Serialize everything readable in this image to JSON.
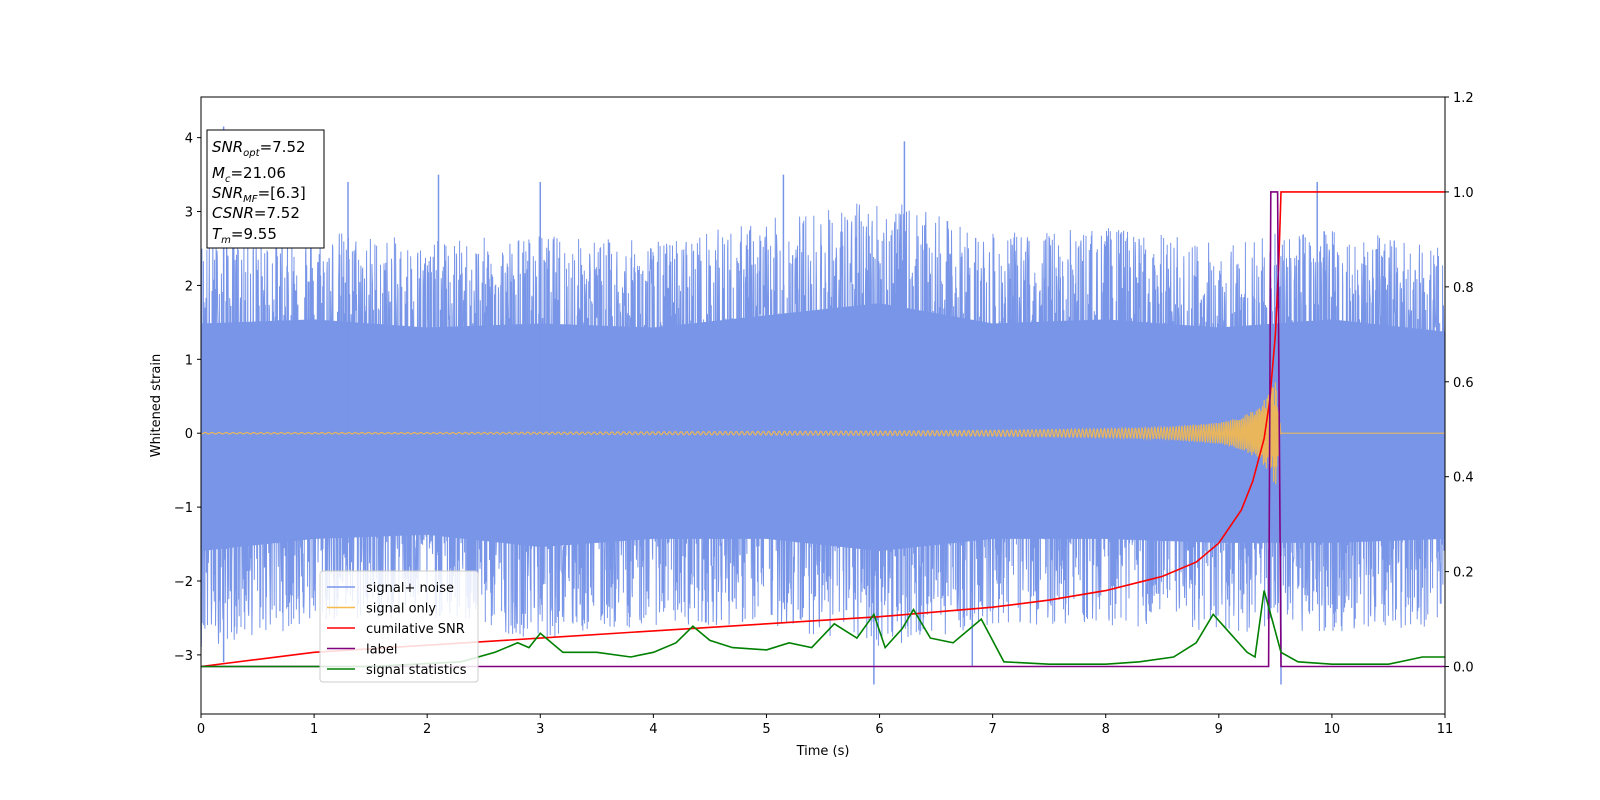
{
  "chart_data": {
    "type": "line",
    "title": "",
    "xlabel": "Time (s)",
    "ylabel": "Whitened strain",
    "y2label": "",
    "xlim": [
      0,
      11
    ],
    "ylim": [
      -3.8,
      4.55
    ],
    "y2lim": [
      -0.1,
      1.2
    ],
    "x_ticks": [
      "0",
      "1",
      "2",
      "3",
      "4",
      "5",
      "6",
      "7",
      "8",
      "9",
      "10",
      "11"
    ],
    "y_ticks": [
      "−3",
      "−2",
      "−1",
      "0",
      "1",
      "2",
      "3",
      "4"
    ],
    "y2_ticks": [
      "0.0",
      "0.2",
      "0.4",
      "0.6",
      "0.8",
      "1.0",
      "1.2"
    ],
    "grid": false,
    "legend_position": "lower-left",
    "annotation": {
      "snr_opt": "=7.52",
      "mc": "=21.06",
      "snr_mf": "=[6.3]",
      "csnr": "=7.52",
      "tm": "=9.55"
    },
    "series": [
      {
        "name": "signal+ noise",
        "color": "#7895e8",
        "axis": "left",
        "description": "whitened strain noise band",
        "envelope_x": [
          0,
          1,
          2,
          3,
          4,
          5,
          6,
          7,
          8,
          9,
          10,
          11
        ],
        "envelope_upper": [
          2.7,
          2.8,
          2.6,
          2.7,
          2.6,
          2.9,
          3.2,
          2.7,
          2.8,
          2.6,
          2.8,
          2.5
        ],
        "envelope_lower": [
          -2.9,
          -2.6,
          -2.5,
          -2.8,
          -2.6,
          -2.6,
          -2.9,
          -2.6,
          -2.6,
          -2.7,
          -2.7,
          -2.6
        ],
        "spikes": [
          [
            0.2,
            4.15
          ],
          [
            0.2,
            -3.1
          ],
          [
            1.3,
            3.4
          ],
          [
            2.1,
            3.5
          ],
          [
            3.0,
            3.4
          ],
          [
            5.15,
            3.5
          ],
          [
            5.95,
            -3.4
          ],
          [
            6.22,
            3.95
          ],
          [
            6.82,
            -3.15
          ],
          [
            9.55,
            -3.4
          ],
          [
            9.87,
            3.4
          ]
        ]
      },
      {
        "name": "signal only",
        "color": "#f5b94d",
        "axis": "left",
        "x": [
          0,
          2,
          4,
          6,
          7,
          8,
          8.5,
          9.0,
          9.2,
          9.35,
          9.45,
          9.5,
          9.55,
          11
        ],
        "values": [
          0.01,
          0.01,
          0.02,
          0.03,
          0.04,
          0.06,
          0.08,
          0.14,
          0.22,
          0.35,
          0.55,
          0.75,
          0,
          0
        ]
      },
      {
        "name": "cumilative SNR",
        "color": "#ff0000",
        "axis": "right",
        "x": [
          0,
          0.5,
          1,
          2,
          3,
          4,
          5,
          6,
          7,
          7.5,
          8,
          8.5,
          8.8,
          9.0,
          9.2,
          9.3,
          9.4,
          9.45,
          9.5,
          9.53,
          9.55,
          11
        ],
        "values": [
          0.0,
          0.015,
          0.03,
          0.045,
          0.06,
          0.075,
          0.09,
          0.105,
          0.125,
          0.14,
          0.16,
          0.19,
          0.22,
          0.26,
          0.33,
          0.39,
          0.48,
          0.56,
          0.7,
          0.85,
          1.0,
          1.0
        ]
      },
      {
        "name": "label",
        "color": "#800080",
        "axis": "right",
        "x": [
          0,
          9.44,
          9.46,
          9.52,
          9.55,
          11
        ],
        "values": [
          0.0,
          0.0,
          1.0,
          1.0,
          0.0,
          0.0
        ]
      },
      {
        "name": "signal statistics",
        "color": "#008000",
        "axis": "right",
        "x": [
          0,
          1.5,
          2.3,
          2.6,
          2.8,
          2.9,
          3.0,
          3.2,
          3.5,
          3.8,
          4.0,
          4.2,
          4.35,
          4.5,
          4.7,
          5.0,
          5.2,
          5.4,
          5.6,
          5.8,
          5.95,
          6.05,
          6.2,
          6.3,
          6.45,
          6.65,
          6.9,
          7.1,
          7.5,
          8.0,
          8.3,
          8.6,
          8.8,
          8.95,
          9.1,
          9.25,
          9.32,
          9.4,
          9.47,
          9.55,
          9.7,
          10.0,
          10.5,
          10.8,
          11.0
        ],
        "values": [
          0.0,
          0.0,
          0.01,
          0.03,
          0.05,
          0.04,
          0.07,
          0.03,
          0.03,
          0.02,
          0.03,
          0.05,
          0.085,
          0.055,
          0.04,
          0.035,
          0.05,
          0.04,
          0.09,
          0.06,
          0.11,
          0.04,
          0.08,
          0.12,
          0.06,
          0.05,
          0.1,
          0.01,
          0.005,
          0.005,
          0.01,
          0.02,
          0.05,
          0.11,
          0.07,
          0.03,
          0.02,
          0.16,
          0.1,
          0.03,
          0.01,
          0.005,
          0.005,
          0.02,
          0.02
        ]
      }
    ]
  }
}
